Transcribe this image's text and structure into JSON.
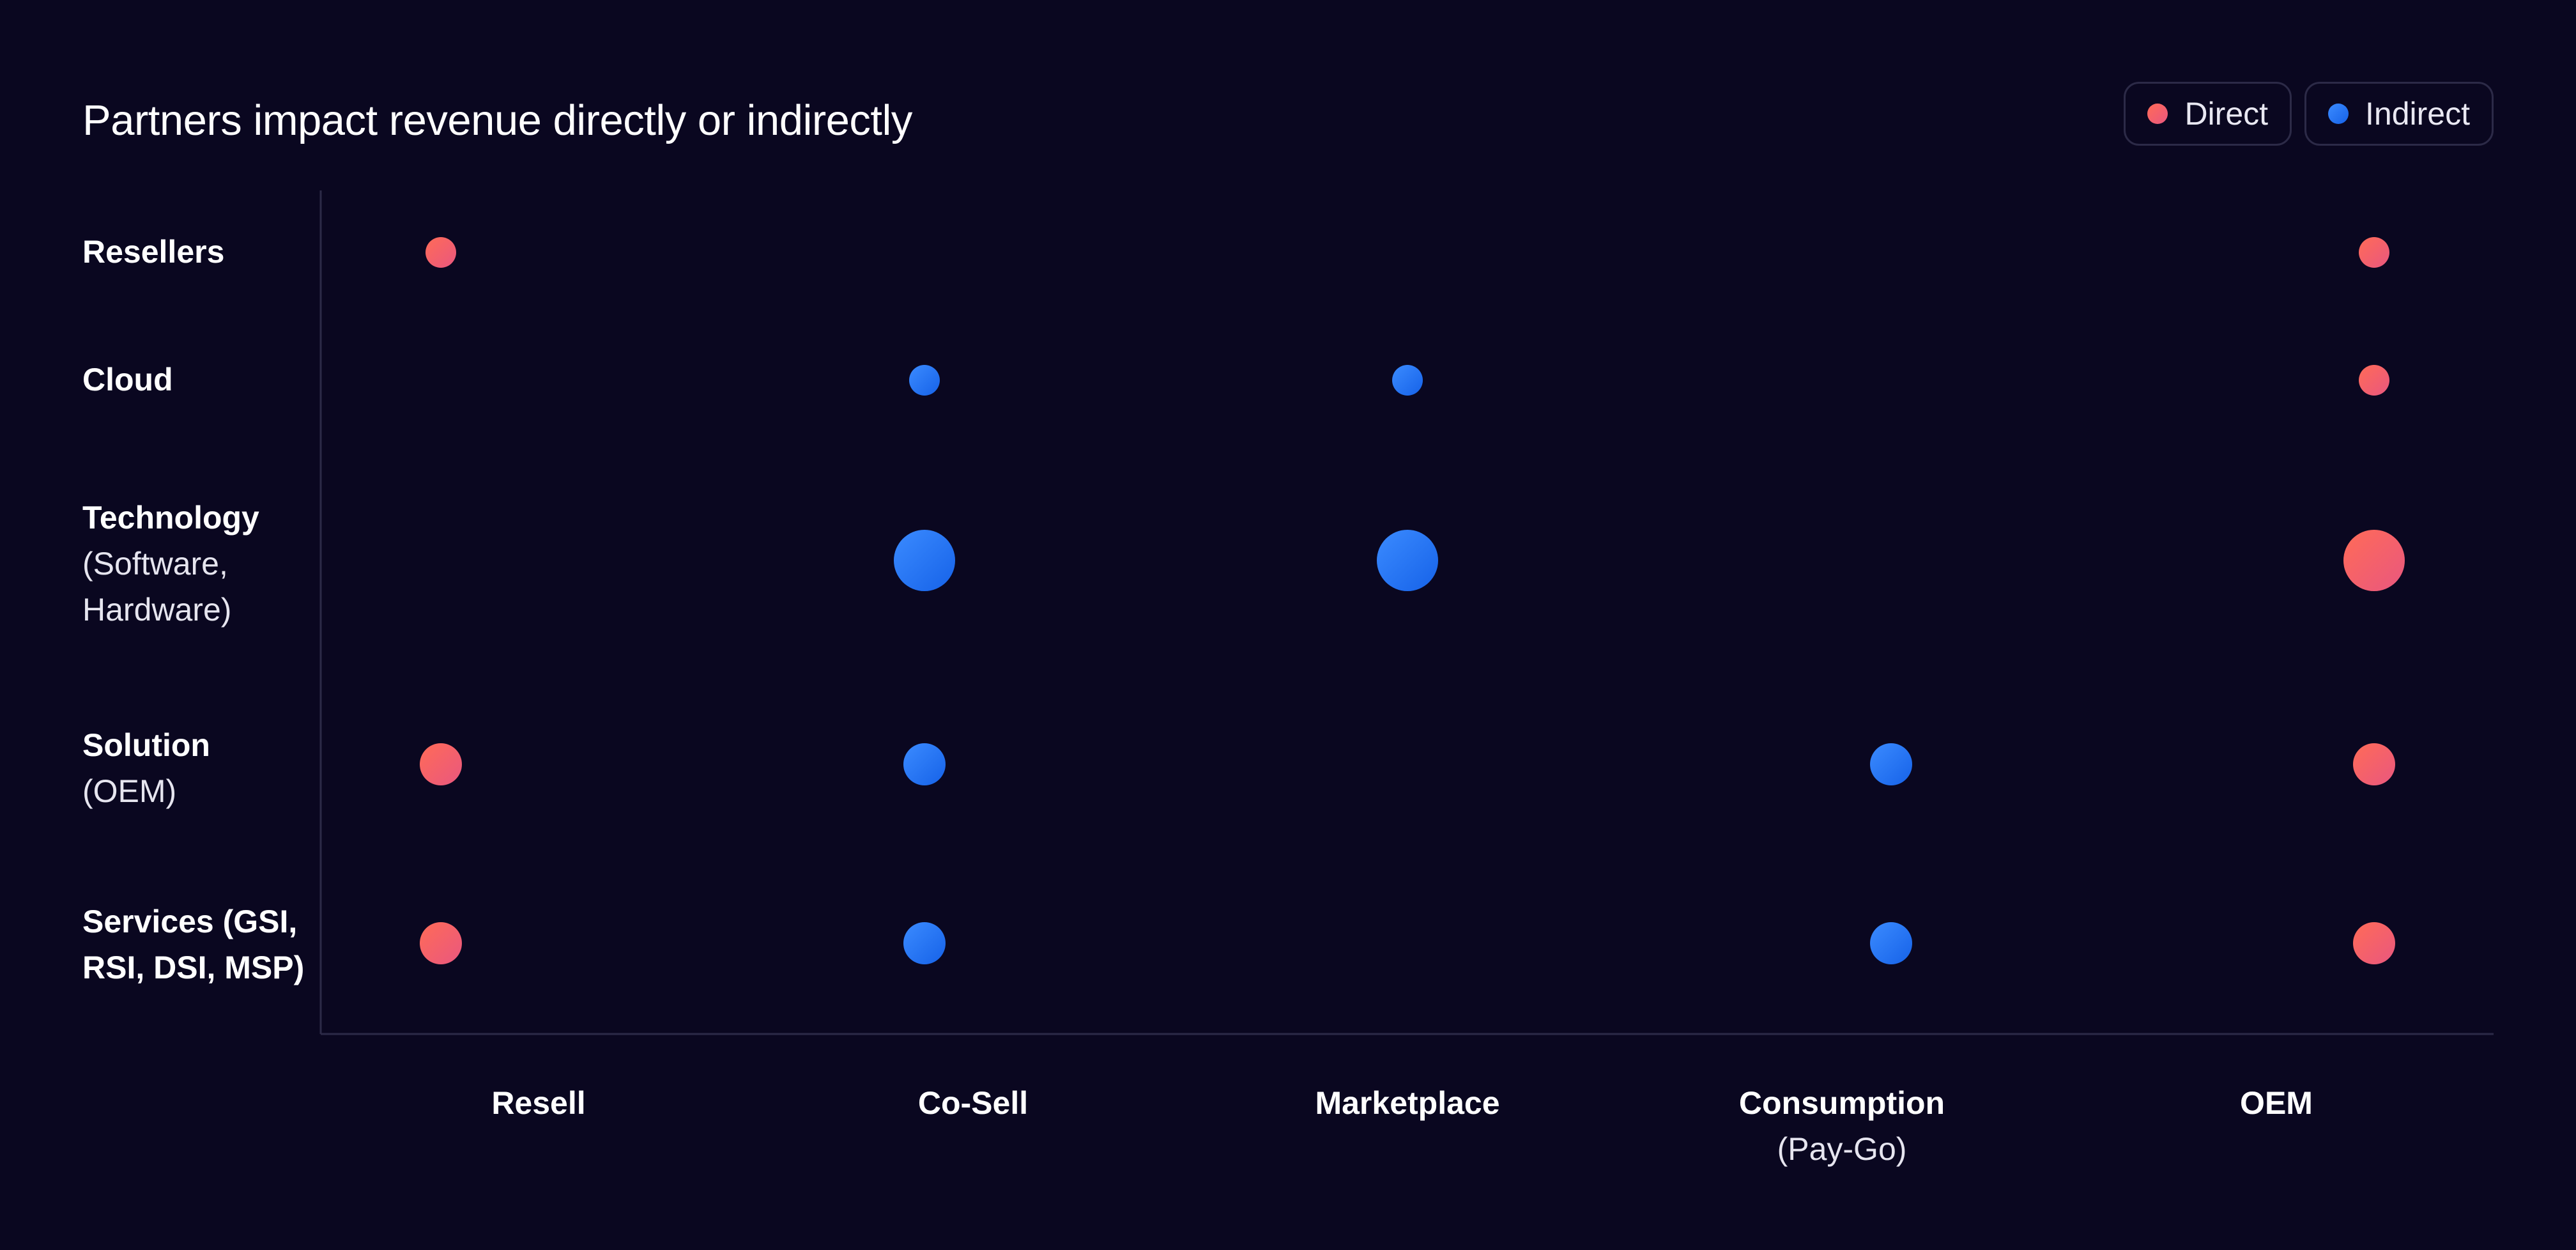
{
  "title": "Partners impact revenue directly or indirectly",
  "legend": [
    {
      "label": "Direct",
      "color": "#f25f6b"
    },
    {
      "label": "Indirect",
      "color": "#2576f5"
    }
  ],
  "colors": {
    "background": "#0a0720",
    "axis": "#2c2a47",
    "direct": "#f25f6b",
    "indirect": "#2576f5"
  },
  "chart_data": {
    "type": "scatter",
    "title": "Partners impact revenue directly or indirectly",
    "grid": false,
    "legend_position": "top-right",
    "x_categories": [
      {
        "label": "Resell",
        "sub": ""
      },
      {
        "label": "Co-Sell",
        "sub": ""
      },
      {
        "label": "Marketplace",
        "sub": ""
      },
      {
        "label": "Consumption",
        "sub": "(Pay-Go)"
      },
      {
        "label": "OEM",
        "sub": ""
      }
    ],
    "y_categories": [
      {
        "label": "Resellers",
        "sub": ""
      },
      {
        "label": "Cloud",
        "sub": ""
      },
      {
        "label": "Technology",
        "sub": "(Software, Hardware)"
      },
      {
        "label": "Solution",
        "sub": "(OEM)"
      },
      {
        "label": "Services (GSI, RSI, DSI, MSP)",
        "sub": ""
      }
    ],
    "series": [
      {
        "name": "Direct",
        "points": [
          {
            "x": "Resell",
            "y": "Resellers",
            "size": 1
          },
          {
            "x": "OEM",
            "y": "Resellers",
            "size": 1
          },
          {
            "x": "OEM",
            "y": "Cloud",
            "size": 1
          },
          {
            "x": "OEM",
            "y": "Technology",
            "size": 3
          },
          {
            "x": "Resell",
            "y": "Solution",
            "size": 2
          },
          {
            "x": "OEM",
            "y": "Solution",
            "size": 2
          },
          {
            "x": "Resell",
            "y": "Services (GSI, RSI, DSI, MSP)",
            "size": 2
          },
          {
            "x": "OEM",
            "y": "Services (GSI, RSI, DSI, MSP)",
            "size": 2
          }
        ]
      },
      {
        "name": "Indirect",
        "points": [
          {
            "x": "Co-Sell",
            "y": "Cloud",
            "size": 1
          },
          {
            "x": "Marketplace",
            "y": "Cloud",
            "size": 1
          },
          {
            "x": "Co-Sell",
            "y": "Technology",
            "size": 3
          },
          {
            "x": "Marketplace",
            "y": "Technology",
            "size": 3
          },
          {
            "x": "Co-Sell",
            "y": "Solution",
            "size": 2
          },
          {
            "x": "Consumption",
            "y": "Solution",
            "size": 2
          },
          {
            "x": "Co-Sell",
            "y": "Services (GSI, RSI, DSI, MSP)",
            "size": 2
          },
          {
            "x": "Consumption",
            "y": "Services (GSI, RSI, DSI, MSP)",
            "size": 2
          }
        ]
      }
    ]
  }
}
